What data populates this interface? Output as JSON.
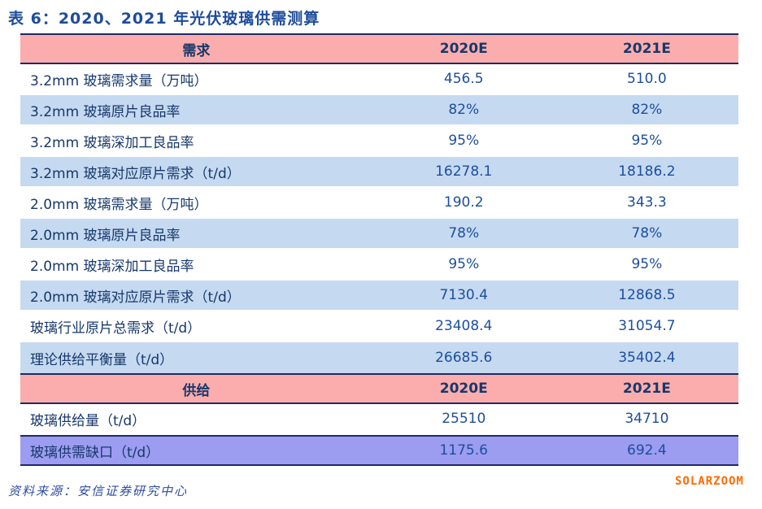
{
  "title": "表 6：2020、2021 年光伏玻璃供需测算",
  "source": "资料来源：安信证券研究中心",
  "watermark": "SOLARZOOM",
  "colors": {
    "header_pink": "#FBADAD",
    "row_light_blue": "#C5D9F1",
    "gap_row_purple": "#9C9CF0",
    "border_navy": "#1F2A63",
    "label_text_navy": "#17386B",
    "value_text_blue": "#1C4E9E",
    "title_blue": "#1E4C9B",
    "source_blue": "#2E4C9E",
    "watermark_orange": "#FF6A00"
  },
  "table": {
    "demand_header": {
      "section": "需求",
      "y2020": "2020E",
      "y2021": "2021E"
    },
    "supply_header": {
      "section": "供给",
      "y2020": "2020E",
      "y2021": "2021E"
    },
    "rows": [
      {
        "label": "3.2mm 玻璃需求量（万吨）",
        "v2020": "456.5",
        "v2021": "510.0"
      },
      {
        "label": "3.2mm 玻璃原片良品率",
        "v2020": "82%",
        "v2021": "82%"
      },
      {
        "label": "3.2mm 玻璃深加工良品率",
        "v2020": "95%",
        "v2021": "95%"
      },
      {
        "label": "3.2mm 玻璃对应原片需求（t/d）",
        "v2020": "16278.1",
        "v2021": "18186.2"
      },
      {
        "label": "2.0mm 玻璃需求量（万吨）",
        "v2020": "190.2",
        "v2021": "343.3"
      },
      {
        "label": "2.0mm 玻璃原片良品率",
        "v2020": "78%",
        "v2021": "78%"
      },
      {
        "label": "2.0mm 玻璃深加工良品率",
        "v2020": "95%",
        "v2021": "95%"
      },
      {
        "label": "2.0mm 玻璃对应原片需求（t/d）",
        "v2020": "7130.4",
        "v2021": "12868.5"
      },
      {
        "label": "玻璃行业原片总需求（t/d）",
        "v2020": "23408.4",
        "v2021": "31054.7"
      },
      {
        "label": "理论供给平衡量（t/d）",
        "v2020": "26685.6",
        "v2021": "35402.4"
      },
      {
        "label": "玻璃供给量（t/d）",
        "v2020": "25510",
        "v2021": "34710"
      },
      {
        "label": "玻璃供需缺口（t/d）",
        "v2020": "1175.6",
        "v2021": "692.4"
      }
    ]
  }
}
